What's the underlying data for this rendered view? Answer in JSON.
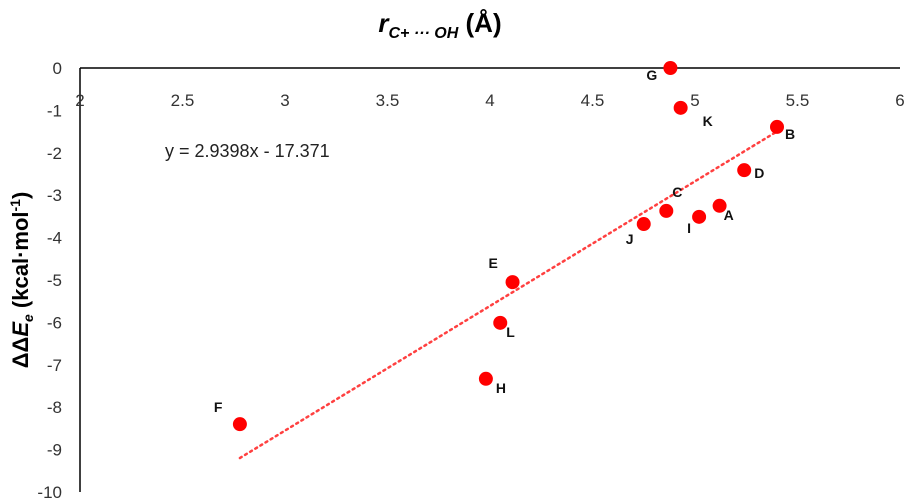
{
  "chart_data": {
    "type": "scatter",
    "title": "",
    "xlabel_parts": {
      "var": "r",
      "sub": "C+ ··· OH",
      "unit": " (Å)"
    },
    "ylabel_parts": {
      "prefix": "ΔΔ",
      "var": "E",
      "sub": "e",
      "unit": " (kcal·mol",
      "sup": "-1",
      "close": ")"
    },
    "xlim": [
      2,
      6
    ],
    "ylim": [
      -10,
      0
    ],
    "xticks": [
      "2",
      "2.5",
      "3",
      "3.5",
      "4",
      "4.5",
      "5",
      "5.5",
      "6"
    ],
    "yticks": [
      "0",
      "-1",
      "-2",
      "-3",
      "-4",
      "-5",
      "-6",
      "-7",
      "-8",
      "-9",
      "-10"
    ],
    "points": [
      {
        "label": "G",
        "x": 4.88,
        "y": 0.0
      },
      {
        "label": "K",
        "x": 4.93,
        "y": -0.94
      },
      {
        "label": "B",
        "x": 5.4,
        "y": -1.39
      },
      {
        "label": "D",
        "x": 5.24,
        "y": -2.41
      },
      {
        "label": "C",
        "x": 4.86,
        "y": -3.37
      },
      {
        "label": "A",
        "x": 5.12,
        "y": -3.25
      },
      {
        "label": "I",
        "x": 5.02,
        "y": -3.51
      },
      {
        "label": "J",
        "x": 4.75,
        "y": -3.68
      },
      {
        "label": "E",
        "x": 4.11,
        "y": -5.05
      },
      {
        "label": "L",
        "x": 4.05,
        "y": -6.01
      },
      {
        "label": "H",
        "x": 3.98,
        "y": -7.33
      },
      {
        "label": "F",
        "x": 2.78,
        "y": -8.4
      }
    ],
    "trendline": {
      "type": "linear",
      "slope": 2.9398,
      "intercept": -17.371,
      "x_range": [
        2.78,
        5.4
      ],
      "equation": "y = 2.9398x - 17.371"
    },
    "colors": {
      "points": "#ff0000",
      "trendline": "#ff4040",
      "axis": "#000000"
    },
    "grid": false,
    "legend": "none"
  }
}
